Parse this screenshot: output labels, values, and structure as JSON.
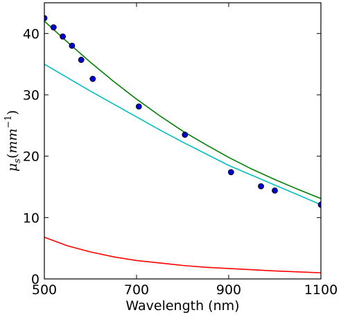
{
  "chart_data": {
    "type": "scatter",
    "title": "",
    "xlabel": "Wavelength (nm)",
    "ylabel": {
      "symbol": "μ",
      "subscript": "s",
      "open": "(",
      "unit": "mm",
      "exponent": "−1",
      "close": ")"
    },
    "xlim": [
      500,
      1100
    ],
    "ylim": [
      0,
      45
    ],
    "xticks": [
      500,
      700,
      900,
      1100
    ],
    "yticks": [
      0,
      10,
      20,
      30,
      40
    ],
    "grid": false,
    "legend": "none",
    "series": [
      {
        "kind": "points",
        "color": "#0000cc",
        "x": [
          500,
          520,
          540,
          560,
          580,
          605,
          705,
          805,
          905,
          970,
          1000,
          1100
        ],
        "y": [
          42.5,
          41.0,
          39.5,
          38.0,
          35.7,
          32.6,
          28.1,
          23.5,
          17.4,
          15.1,
          14.4,
          12.1
        ]
      },
      {
        "kind": "line",
        "color": "#007f00",
        "x": [
          500,
          550,
          600,
          650,
          700,
          750,
          800,
          850,
          900,
          950,
          1000,
          1050,
          1100
        ],
        "y": [
          42.0,
          38.6,
          35.3,
          32.2,
          29.3,
          26.6,
          24.1,
          21.9,
          19.8,
          17.9,
          16.2,
          14.6,
          13.1
        ]
      },
      {
        "kind": "line",
        "color": "#00bfbf",
        "x": [
          500,
          550,
          600,
          650,
          700,
          750,
          800,
          850,
          900,
          950,
          1000,
          1050,
          1100
        ],
        "y": [
          35.0,
          32.8,
          30.6,
          28.5,
          26.4,
          24.3,
          22.3,
          20.4,
          18.5,
          16.9,
          15.3,
          13.7,
          12.1
        ]
      },
      {
        "kind": "line",
        "color": "#ff0000",
        "x": [
          500,
          550,
          600,
          650,
          700,
          750,
          800,
          850,
          900,
          950,
          1000,
          1050,
          1100
        ],
        "y": [
          6.8,
          5.4,
          4.4,
          3.6,
          3.0,
          2.6,
          2.2,
          1.9,
          1.7,
          1.5,
          1.3,
          1.15,
          1.0
        ]
      }
    ]
  }
}
